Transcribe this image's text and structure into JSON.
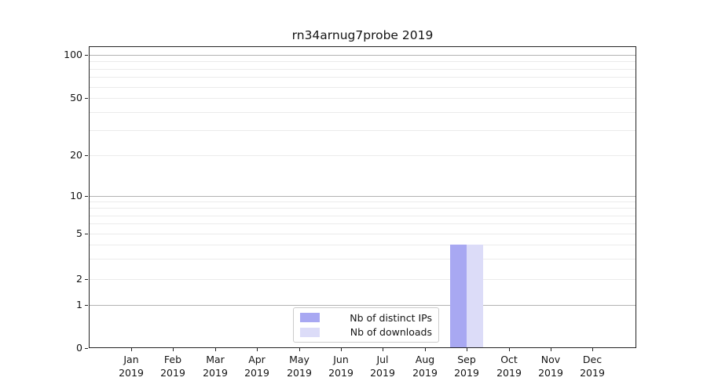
{
  "title": "rn34arnug7probe 2019",
  "colors": {
    "distinct_ips": "#a8a8f2",
    "downloads": "#dcdcf8",
    "grid_major": "#b2b2b2",
    "grid_minor": "#ebebeb",
    "spine": "#242424",
    "text": "#141414",
    "legend_border": "#cccccc"
  },
  "chart_data": {
    "type": "bar",
    "title": "rn34arnug7probe 2019",
    "categories": [
      "Jan 2019",
      "Feb 2019",
      "Mar 2019",
      "Apr 2019",
      "May 2019",
      "Jun 2019",
      "Jul 2019",
      "Aug 2019",
      "Sep 2019",
      "Oct 2019",
      "Nov 2019",
      "Dec 2019"
    ],
    "series": [
      {
        "name": "Nb of distinct IPs",
        "color_key": "distinct_ips",
        "values": [
          0,
          0,
          0,
          0,
          0,
          0,
          0,
          0,
          4,
          0,
          0,
          0
        ]
      },
      {
        "name": "Nb of downloads",
        "color_key": "downloads",
        "values": [
          0,
          0,
          0,
          0,
          0,
          0,
          0,
          0,
          4,
          0,
          0,
          0
        ]
      }
    ],
    "xlabel": "",
    "ylabel": "",
    "yscale": "symlog",
    "ylim": [
      0,
      115
    ],
    "ytick_values": [
      0,
      1,
      2,
      5,
      10,
      20,
      50,
      100
    ],
    "grid": "horizontal, log minor + major decade lines",
    "legend_position": "bottom-center inside plot"
  }
}
